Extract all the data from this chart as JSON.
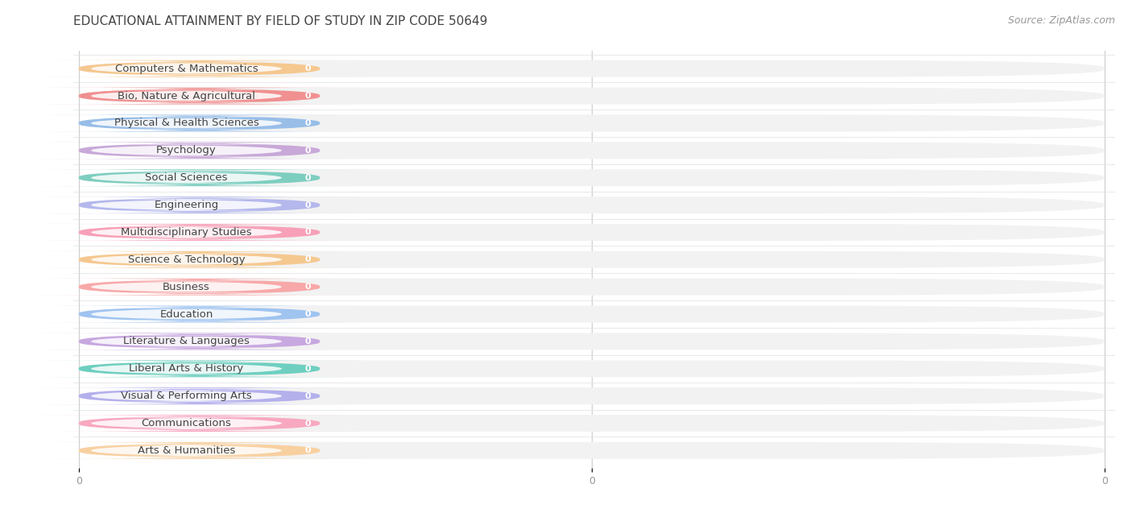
{
  "title": "EDUCATIONAL ATTAINMENT BY FIELD OF STUDY IN ZIP CODE 50649",
  "source": "Source: ZipAtlas.com",
  "categories": [
    "Computers & Mathematics",
    "Bio, Nature & Agricultural",
    "Physical & Health Sciences",
    "Psychology",
    "Social Sciences",
    "Engineering",
    "Multidisciplinary Studies",
    "Science & Technology",
    "Business",
    "Education",
    "Literature & Languages",
    "Liberal Arts & History",
    "Visual & Performing Arts",
    "Communications",
    "Arts & Humanities"
  ],
  "values": [
    0,
    0,
    0,
    0,
    0,
    0,
    0,
    0,
    0,
    0,
    0,
    0,
    0,
    0,
    0
  ],
  "bar_colors": [
    "#F5C890",
    "#F09090",
    "#98BEE8",
    "#C8A8D8",
    "#7ECEC0",
    "#B4B8EC",
    "#F8A0B8",
    "#F5C890",
    "#F8A8A8",
    "#A0C4F0",
    "#C8A8E0",
    "#6ECFC0",
    "#B4B0EC",
    "#F8A8C0",
    "#F8D0A0"
  ],
  "background_color": "#ffffff",
  "bar_bg_color": "#f2f2f2",
  "label_inner_bg": "#ffffff",
  "title_fontsize": 11,
  "label_fontsize": 9.5,
  "tick_fontsize": 9,
  "source_fontsize": 9,
  "n_xticks": 3,
  "xtick_labels": [
    "0",
    "0",
    "0"
  ],
  "xtick_positions": [
    0.0,
    0.5,
    1.0
  ]
}
